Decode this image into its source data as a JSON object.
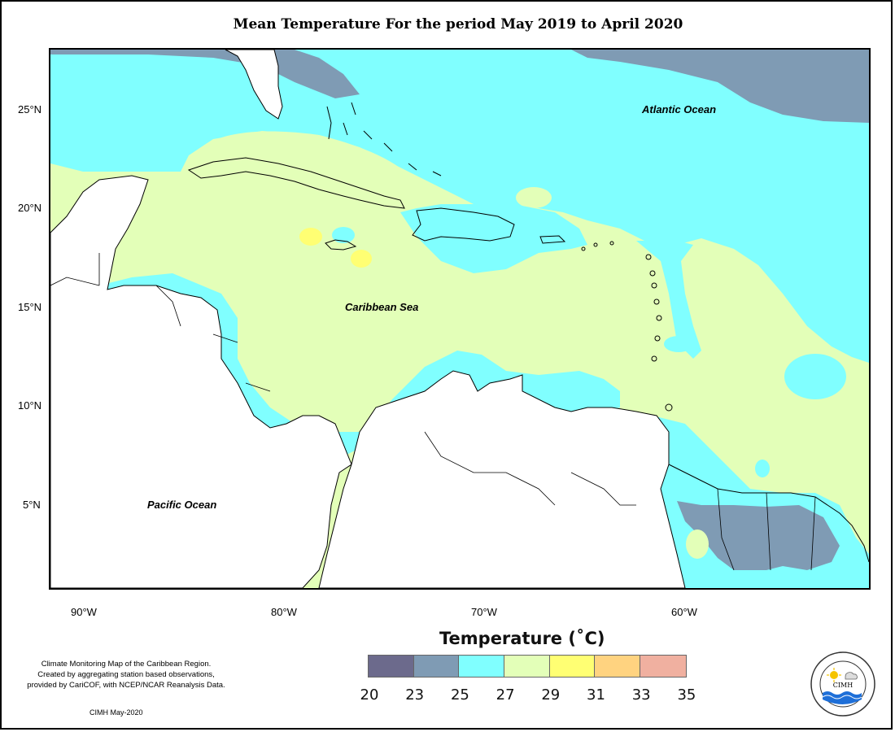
{
  "title": "Mean Temperature For the period May 2019 to April 2020",
  "map": {
    "lon_range": [
      -92,
      -51
    ],
    "lat_range": [
      1,
      28
    ],
    "lon_ticks": [
      {
        "value": -90,
        "label": "90°W"
      },
      {
        "value": -80,
        "label": "80°W"
      },
      {
        "value": -70,
        "label": "70°W"
      },
      {
        "value": -60,
        "label": "60°W"
      }
    ],
    "lat_ticks": [
      {
        "value": 25,
        "label": "25°N"
      },
      {
        "value": 20,
        "label": "20°N"
      },
      {
        "value": 15,
        "label": "15°N"
      },
      {
        "value": 10,
        "label": "10°N"
      },
      {
        "value": 5,
        "label": "5°N"
      }
    ],
    "labels": {
      "atlantic": "Atlantic Ocean",
      "caribbean": "Caribbean Sea",
      "pacific": "Pacific Ocean"
    }
  },
  "legend": {
    "title": "Temperature (˚C)",
    "colors": [
      "#6c6a8c",
      "#7f9bb4",
      "#80ffff",
      "#e3ffb8",
      "#ffff73",
      "#ffd380",
      "#f0b0a0"
    ],
    "ticks": [
      "20",
      "23",
      "25",
      "27",
      "29",
      "31",
      "33",
      "35"
    ]
  },
  "credit": {
    "line1": "Climate Monitoring Map of the Caribbean Region.",
    "line2": "Created by aggregating station based observations,",
    "line3": "provided by CariCOF, with NCEP/NCAR Reanalysis Data.",
    "date": "CIMH May-2020"
  },
  "logo": {
    "text": "CIMH",
    "icon": "cimh-logo-icon"
  }
}
